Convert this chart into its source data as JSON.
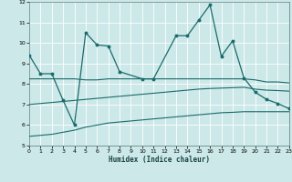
{
  "x": [
    0,
    1,
    2,
    3,
    4,
    5,
    6,
    7,
    8,
    9,
    10,
    11,
    12,
    13,
    14,
    15,
    16,
    17,
    18,
    19,
    20,
    21,
    22,
    23
  ],
  "line_zigzag": [
    9.4,
    8.5,
    8.5,
    7.2,
    6.0,
    10.5,
    9.9,
    9.85,
    8.6,
    8.25,
    8.25,
    10.35,
    10.35,
    11.1,
    11.85,
    9.35,
    10.1,
    8.3,
    7.6,
    7.25,
    7.05,
    6.8
  ],
  "line_zigzag_x": [
    0,
    1,
    2,
    3,
    4,
    5,
    6,
    7,
    8,
    10,
    11,
    13,
    14,
    15,
    16,
    17,
    18,
    19,
    20,
    21,
    22,
    23
  ],
  "line_upper": [
    8.25,
    8.25,
    8.25,
    8.25,
    8.25,
    8.2,
    8.2,
    8.25,
    8.25,
    8.25,
    8.25,
    8.25,
    8.25,
    8.25,
    8.25,
    8.25,
    8.25,
    8.25,
    8.25,
    8.25,
    8.2,
    8.1,
    8.1,
    8.05
  ],
  "line_mid": [
    7.0,
    7.05,
    7.1,
    7.15,
    7.2,
    7.25,
    7.3,
    7.35,
    7.4,
    7.45,
    7.5,
    7.55,
    7.6,
    7.65,
    7.7,
    7.75,
    7.78,
    7.8,
    7.82,
    7.84,
    7.75,
    7.7,
    7.68,
    7.65
  ],
  "line_lower": [
    5.45,
    5.5,
    5.55,
    5.65,
    5.75,
    5.9,
    6.0,
    6.1,
    6.15,
    6.2,
    6.25,
    6.3,
    6.35,
    6.4,
    6.45,
    6.5,
    6.55,
    6.6,
    6.62,
    6.65,
    6.65,
    6.65,
    6.65,
    6.65
  ],
  "bg_color": "#cce8e8",
  "grid_color": "#aacccc",
  "line_color": "#1a6b6b",
  "xlim": [
    0,
    23
  ],
  "ylim": [
    5,
    12
  ],
  "yticks": [
    5,
    6,
    7,
    8,
    9,
    10,
    11,
    12
  ],
  "xticks": [
    0,
    1,
    2,
    3,
    4,
    5,
    6,
    7,
    8,
    9,
    10,
    11,
    12,
    13,
    14,
    15,
    16,
    17,
    18,
    19,
    20,
    21,
    22,
    23
  ],
  "xlabel": "Humidex (Indice chaleur)"
}
